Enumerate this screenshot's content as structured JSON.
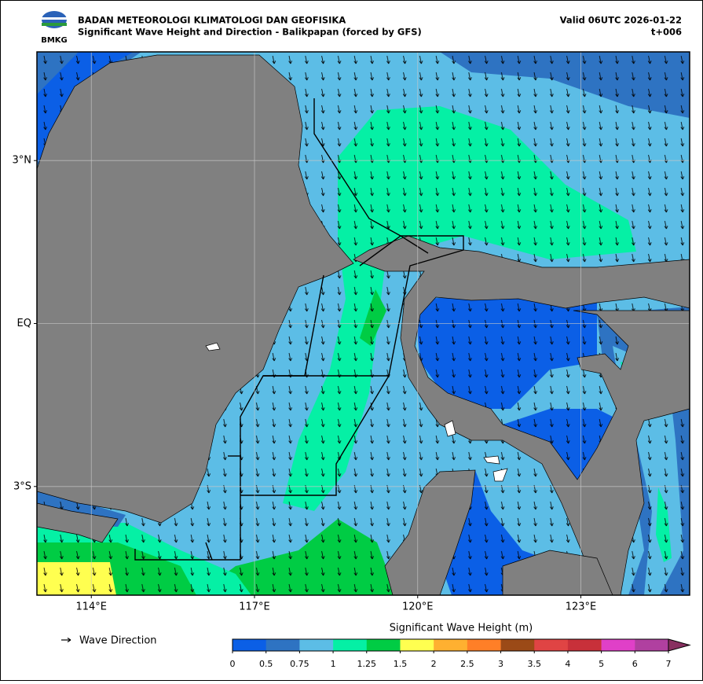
{
  "header": {
    "logo": "BMKG",
    "org": "BADAN METEOROLOGI KLIMATOLOGI DAN GEOFISIKA",
    "title": "Significant Wave Height and Direction - Balikpapan (forced by GFS)",
    "valid": "Valid 06UTC 2026-01-22",
    "step": "t+006"
  },
  "map": {
    "xlim": [
      113,
      125
    ],
    "ylim": [
      -5,
      5
    ],
    "xticks": [
      {
        "value": 114,
        "label": "114°E"
      },
      {
        "value": 117,
        "label": "117°E"
      },
      {
        "value": 120,
        "label": "120°E"
      },
      {
        "value": 123,
        "label": "123°E"
      }
    ],
    "yticks": [
      {
        "value": 3,
        "label": "3°N"
      },
      {
        "value": 0,
        "label": "EQ"
      },
      {
        "value": -3,
        "label": "3°S"
      }
    ],
    "grid": true
  },
  "legend": {
    "label": "Wave Direction"
  },
  "colorbar": {
    "title": "Significant Wave Height (m)",
    "levels": [
      0,
      0.5,
      0.75,
      1,
      1.25,
      1.5,
      2,
      2.5,
      3,
      3.5,
      4,
      5,
      6,
      7
    ],
    "colors": [
      "#0b5fe6",
      "#2e73c2",
      "#5cbde6",
      "#05f0a5",
      "#00cc44",
      "#ffff50",
      "#ffb030",
      "#ff7f27",
      "#9b4a17",
      "#e04444",
      "#c8303a",
      "#e040c8",
      "#b040a0",
      "#883060"
    ]
  }
}
